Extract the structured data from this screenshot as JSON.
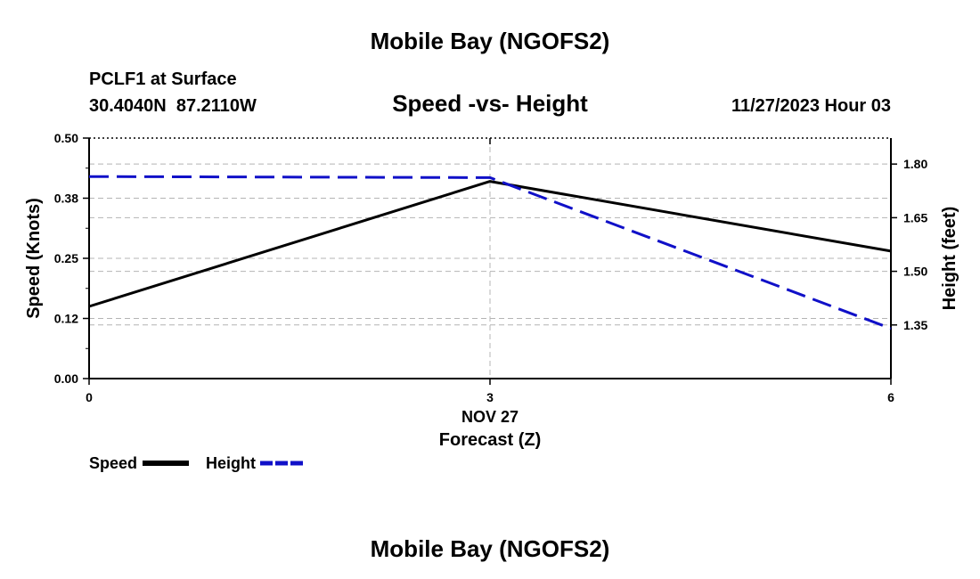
{
  "page": {
    "top_title": "Mobile Bay (NGOFS2)",
    "bottom_title": "Mobile Bay (NGOFS2)"
  },
  "station": {
    "name_line": "PCLF1 at Surface",
    "coords_line": "30.4040N  87.2110W"
  },
  "chart_data": {
    "type": "line",
    "title": "Speed -vs- Height",
    "datetime": "11/27/2023 Hour 03",
    "xlabel": "Forecast (Z)",
    "xdate_label": "NOV 27",
    "x": [
      0,
      3,
      6
    ],
    "x_ticks": [
      0,
      3,
      6
    ],
    "x_tick_labels": [
      "0",
      "3",
      "6"
    ],
    "xlim": [
      0,
      6
    ],
    "ylabel_left": "Speed (Knots)",
    "ylim_left": [
      0,
      0.5
    ],
    "y_left_ticks": [
      0.0,
      0.125,
      0.25,
      0.375,
      0.5
    ],
    "y_left_tick_labels": [
      "0.00",
      "0.12",
      "0.25",
      "0.38",
      "0.50"
    ],
    "ylabel_right": "Height (feet)",
    "ylim_right": [
      1.2,
      1.8727
    ],
    "y_right_ticks": [
      1.35,
      1.5,
      1.65,
      1.8
    ],
    "y_right_tick_labels": [
      "1.35",
      "1.50",
      "1.65",
      "1.80"
    ],
    "grid": true,
    "series": [
      {
        "name": "Speed",
        "axis": "left",
        "values": [
          0.15,
          0.41,
          0.265
        ],
        "color": "#000000",
        "style": "solid"
      },
      {
        "name": "Height",
        "axis": "right",
        "values": [
          1.765,
          1.762,
          1.34
        ],
        "color": "#1010c8",
        "style": "dashed"
      }
    ],
    "legend": [
      {
        "label": "Speed",
        "color": "#000000",
        "style": "solid"
      },
      {
        "label": "Height",
        "color": "#1010c8",
        "style": "dashed"
      }
    ]
  }
}
